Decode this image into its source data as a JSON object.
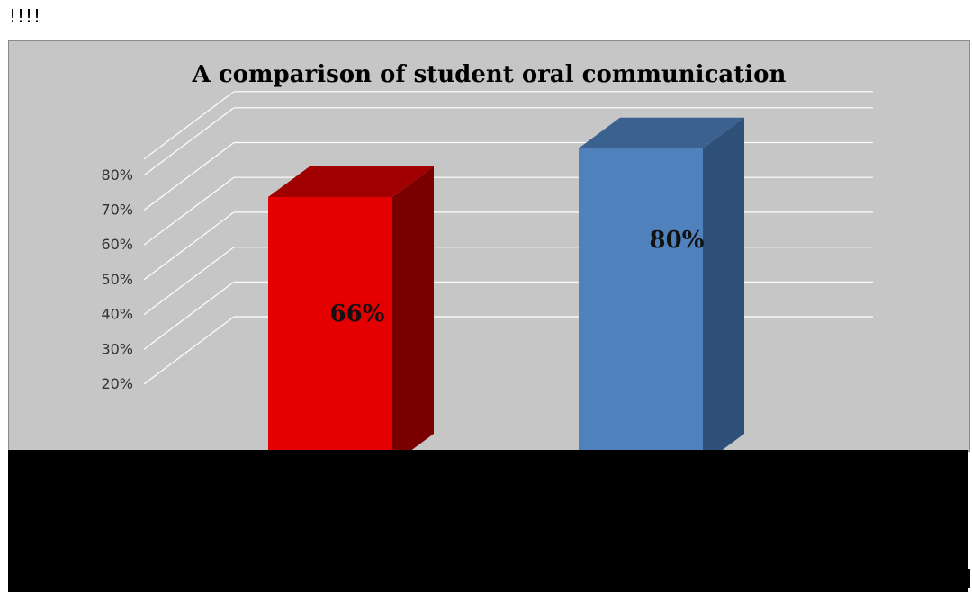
{
  "page": {
    "top_marker": "!!!!"
  },
  "chart_data": {
    "type": "bar",
    "title": "A comparison of student oral communication",
    "categories": [
      "",
      ""
    ],
    "values": [
      66,
      80
    ],
    "value_labels": [
      "66%",
      "80%"
    ],
    "ylim": [
      20,
      80
    ],
    "yticks": [
      "20%",
      "30%",
      "40%",
      "50%",
      "60%",
      "70%",
      "80%"
    ],
    "ytick_values": [
      20,
      30,
      40,
      50,
      60,
      70,
      80
    ],
    "grid": true,
    "three_d": true,
    "colors": {
      "bar1_front": "#e40000",
      "bar1_top": "#a00000",
      "bar1_side": "#7a0000",
      "bar2_front": "#4f81bd",
      "bar2_top": "#3b6190",
      "bar2_side": "#2f5078",
      "background": "#c6c6c6",
      "gridline": "#ffffff"
    }
  }
}
